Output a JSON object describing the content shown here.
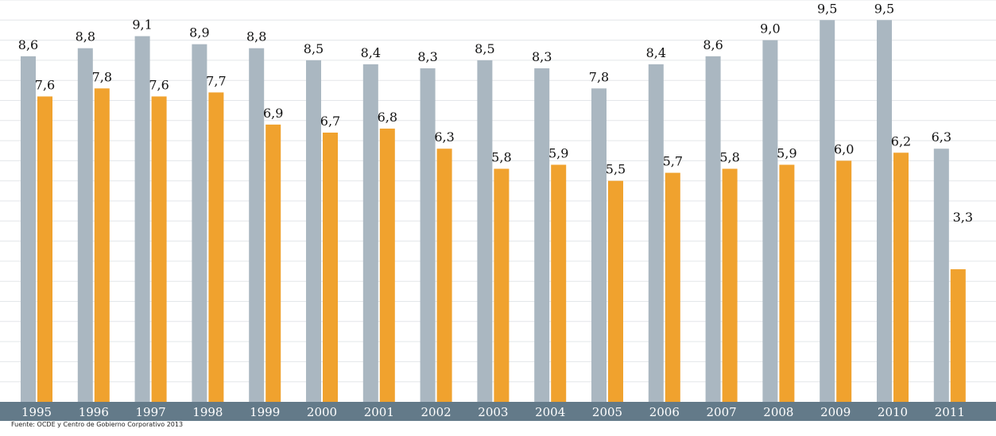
{
  "chart_data": {
    "type": "bar",
    "categories": [
      "1995",
      "1996",
      "1997",
      "1998",
      "1999",
      "2000",
      "2001",
      "2002",
      "2003",
      "2004",
      "2005",
      "2006",
      "2007",
      "2008",
      "2009",
      "2010",
      "2011"
    ],
    "series": [
      {
        "values": [
          8.6,
          8.8,
          9.1,
          8.9,
          8.8,
          8.5,
          8.4,
          8.3,
          8.5,
          8.3,
          7.8,
          8.4,
          8.6,
          9.0,
          9.5,
          9.5,
          6.3
        ],
        "labels": [
          "8,6",
          "8,8",
          "9,1",
          "8,9",
          "8,8",
          "8,5",
          "8,4",
          "8,3",
          "8,5",
          "8,3",
          "7,8",
          "8,4",
          "8,6",
          "9,0",
          "9,5",
          "9,5",
          "6,3"
        ],
        "color": "#aab7c1"
      },
      {
        "values": [
          7.6,
          7.8,
          7.6,
          7.7,
          6.9,
          6.7,
          6.8,
          6.3,
          5.8,
          5.9,
          5.5,
          5.7,
          5.8,
          5.9,
          6.0,
          6.2,
          3.3
        ],
        "labels": [
          "7,6",
          "7,8",
          "7,6",
          "7,7",
          "6,9",
          "6,7",
          "6,8",
          "6,3",
          "5,8",
          "5,9",
          "5,5",
          "5,7",
          "5,8",
          "5,9",
          "6,0",
          "6,2",
          "3,3"
        ],
        "color": "#f0a22e"
      }
    ],
    "ylim": [
      0,
      10
    ],
    "grid": true,
    "xaxis_color": "#637a89",
    "source": "Fuente: OCDE y Centro de Gobierno Corporativo 2013"
  }
}
